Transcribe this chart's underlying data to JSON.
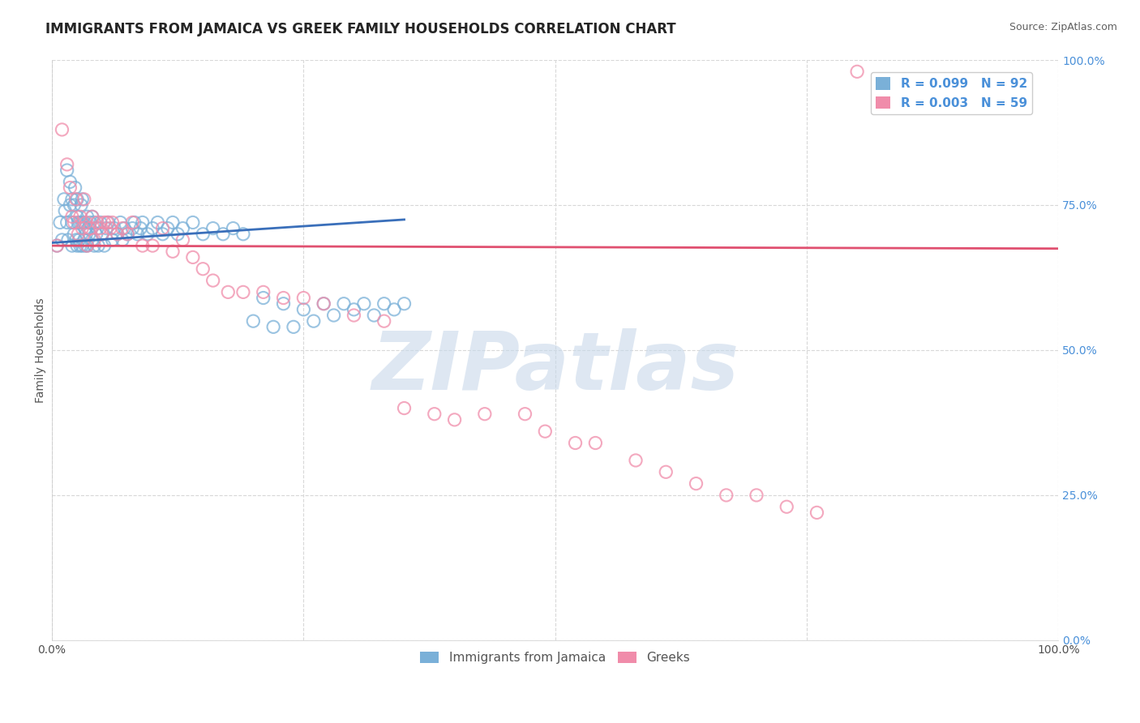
{
  "title": "IMMIGRANTS FROM JAMAICA VS GREEK FAMILY HOUSEHOLDS CORRELATION CHART",
  "source": "Source: ZipAtlas.com",
  "ylabel": "Family Households",
  "y_tick_labels": [
    "0.0%",
    "25.0%",
    "50.0%",
    "75.0%",
    "100.0%"
  ],
  "y_tick_positions": [
    0.0,
    0.25,
    0.5,
    0.75,
    1.0
  ],
  "xlim": [
    0.0,
    1.0
  ],
  "ylim": [
    0.0,
    1.0
  ],
  "series1_color": "#7ab0d8",
  "series2_color": "#f08caa",
  "trendline1_color": "#3a6fba",
  "trendline2_color": "#e05070",
  "background_color": "#ffffff",
  "grid_color": "#d8d8d8",
  "watermark_text": "ZIPatlas",
  "watermark_color": "#c8d8ea",
  "title_color": "#252525",
  "title_fontsize": 12,
  "source_fontsize": 9,
  "legend_text_color": "#4a90d9",
  "axis_tick_color": "#4a90d9",
  "series1_x": [
    0.005,
    0.008,
    0.01,
    0.012,
    0.013,
    0.015,
    0.015,
    0.016,
    0.018,
    0.018,
    0.02,
    0.02,
    0.02,
    0.022,
    0.022,
    0.023,
    0.024,
    0.025,
    0.025,
    0.025,
    0.026,
    0.027,
    0.028,
    0.028,
    0.029,
    0.03,
    0.03,
    0.03,
    0.032,
    0.032,
    0.033,
    0.033,
    0.034,
    0.035,
    0.035,
    0.036,
    0.037,
    0.038,
    0.04,
    0.04,
    0.042,
    0.042,
    0.044,
    0.045,
    0.046,
    0.048,
    0.05,
    0.052,
    0.054,
    0.056,
    0.06,
    0.062,
    0.065,
    0.068,
    0.07,
    0.072,
    0.075,
    0.08,
    0.082,
    0.085,
    0.088,
    0.09,
    0.095,
    0.1,
    0.105,
    0.11,
    0.115,
    0.12,
    0.125,
    0.13,
    0.14,
    0.15,
    0.16,
    0.17,
    0.18,
    0.19,
    0.2,
    0.21,
    0.22,
    0.23,
    0.24,
    0.25,
    0.26,
    0.27,
    0.28,
    0.29,
    0.3,
    0.31,
    0.32,
    0.33,
    0.34,
    0.35
  ],
  "series1_y": [
    0.68,
    0.72,
    0.69,
    0.76,
    0.74,
    0.72,
    0.81,
    0.69,
    0.75,
    0.79,
    0.68,
    0.72,
    0.76,
    0.7,
    0.75,
    0.78,
    0.69,
    0.68,
    0.73,
    0.76,
    0.72,
    0.69,
    0.68,
    0.72,
    0.75,
    0.68,
    0.72,
    0.76,
    0.69,
    0.72,
    0.68,
    0.71,
    0.7,
    0.68,
    0.73,
    0.71,
    0.7,
    0.72,
    0.69,
    0.73,
    0.68,
    0.72,
    0.7,
    0.71,
    0.68,
    0.72,
    0.7,
    0.68,
    0.71,
    0.72,
    0.69,
    0.71,
    0.7,
    0.72,
    0.69,
    0.71,
    0.7,
    0.71,
    0.72,
    0.7,
    0.71,
    0.72,
    0.7,
    0.71,
    0.72,
    0.7,
    0.71,
    0.72,
    0.7,
    0.71,
    0.72,
    0.7,
    0.71,
    0.7,
    0.71,
    0.7,
    0.55,
    0.59,
    0.54,
    0.58,
    0.54,
    0.57,
    0.55,
    0.58,
    0.56,
    0.58,
    0.57,
    0.58,
    0.56,
    0.58,
    0.57,
    0.58
  ],
  "series2_x": [
    0.005,
    0.01,
    0.015,
    0.018,
    0.02,
    0.022,
    0.024,
    0.026,
    0.028,
    0.03,
    0.032,
    0.034,
    0.035,
    0.038,
    0.04,
    0.042,
    0.045,
    0.048,
    0.05,
    0.052,
    0.055,
    0.058,
    0.06,
    0.065,
    0.07,
    0.075,
    0.08,
    0.09,
    0.1,
    0.11,
    0.12,
    0.13,
    0.14,
    0.15,
    0.16,
    0.175,
    0.19,
    0.21,
    0.23,
    0.25,
    0.27,
    0.3,
    0.33,
    0.35,
    0.38,
    0.4,
    0.43,
    0.47,
    0.49,
    0.52,
    0.54,
    0.58,
    0.61,
    0.64,
    0.67,
    0.7,
    0.73,
    0.76,
    0.8
  ],
  "series2_y": [
    0.68,
    0.88,
    0.82,
    0.78,
    0.73,
    0.72,
    0.76,
    0.7,
    0.73,
    0.71,
    0.76,
    0.72,
    0.68,
    0.71,
    0.73,
    0.69,
    0.72,
    0.71,
    0.7,
    0.72,
    0.72,
    0.71,
    0.72,
    0.7,
    0.71,
    0.7,
    0.72,
    0.68,
    0.68,
    0.71,
    0.67,
    0.69,
    0.66,
    0.64,
    0.62,
    0.6,
    0.6,
    0.6,
    0.59,
    0.59,
    0.58,
    0.56,
    0.55,
    0.4,
    0.39,
    0.38,
    0.39,
    0.39,
    0.36,
    0.34,
    0.34,
    0.31,
    0.29,
    0.27,
    0.25,
    0.25,
    0.23,
    0.22,
    0.98
  ],
  "trendline1_start_x": 0.0,
  "trendline1_end_x": 0.35,
  "trendline2_start_x": 0.0,
  "trendline2_end_x": 1.0,
  "trendline1_start_y": 0.685,
  "trendline1_end_y": 0.725,
  "trendline2_start_y": 0.68,
  "trendline2_end_y": 0.675
}
